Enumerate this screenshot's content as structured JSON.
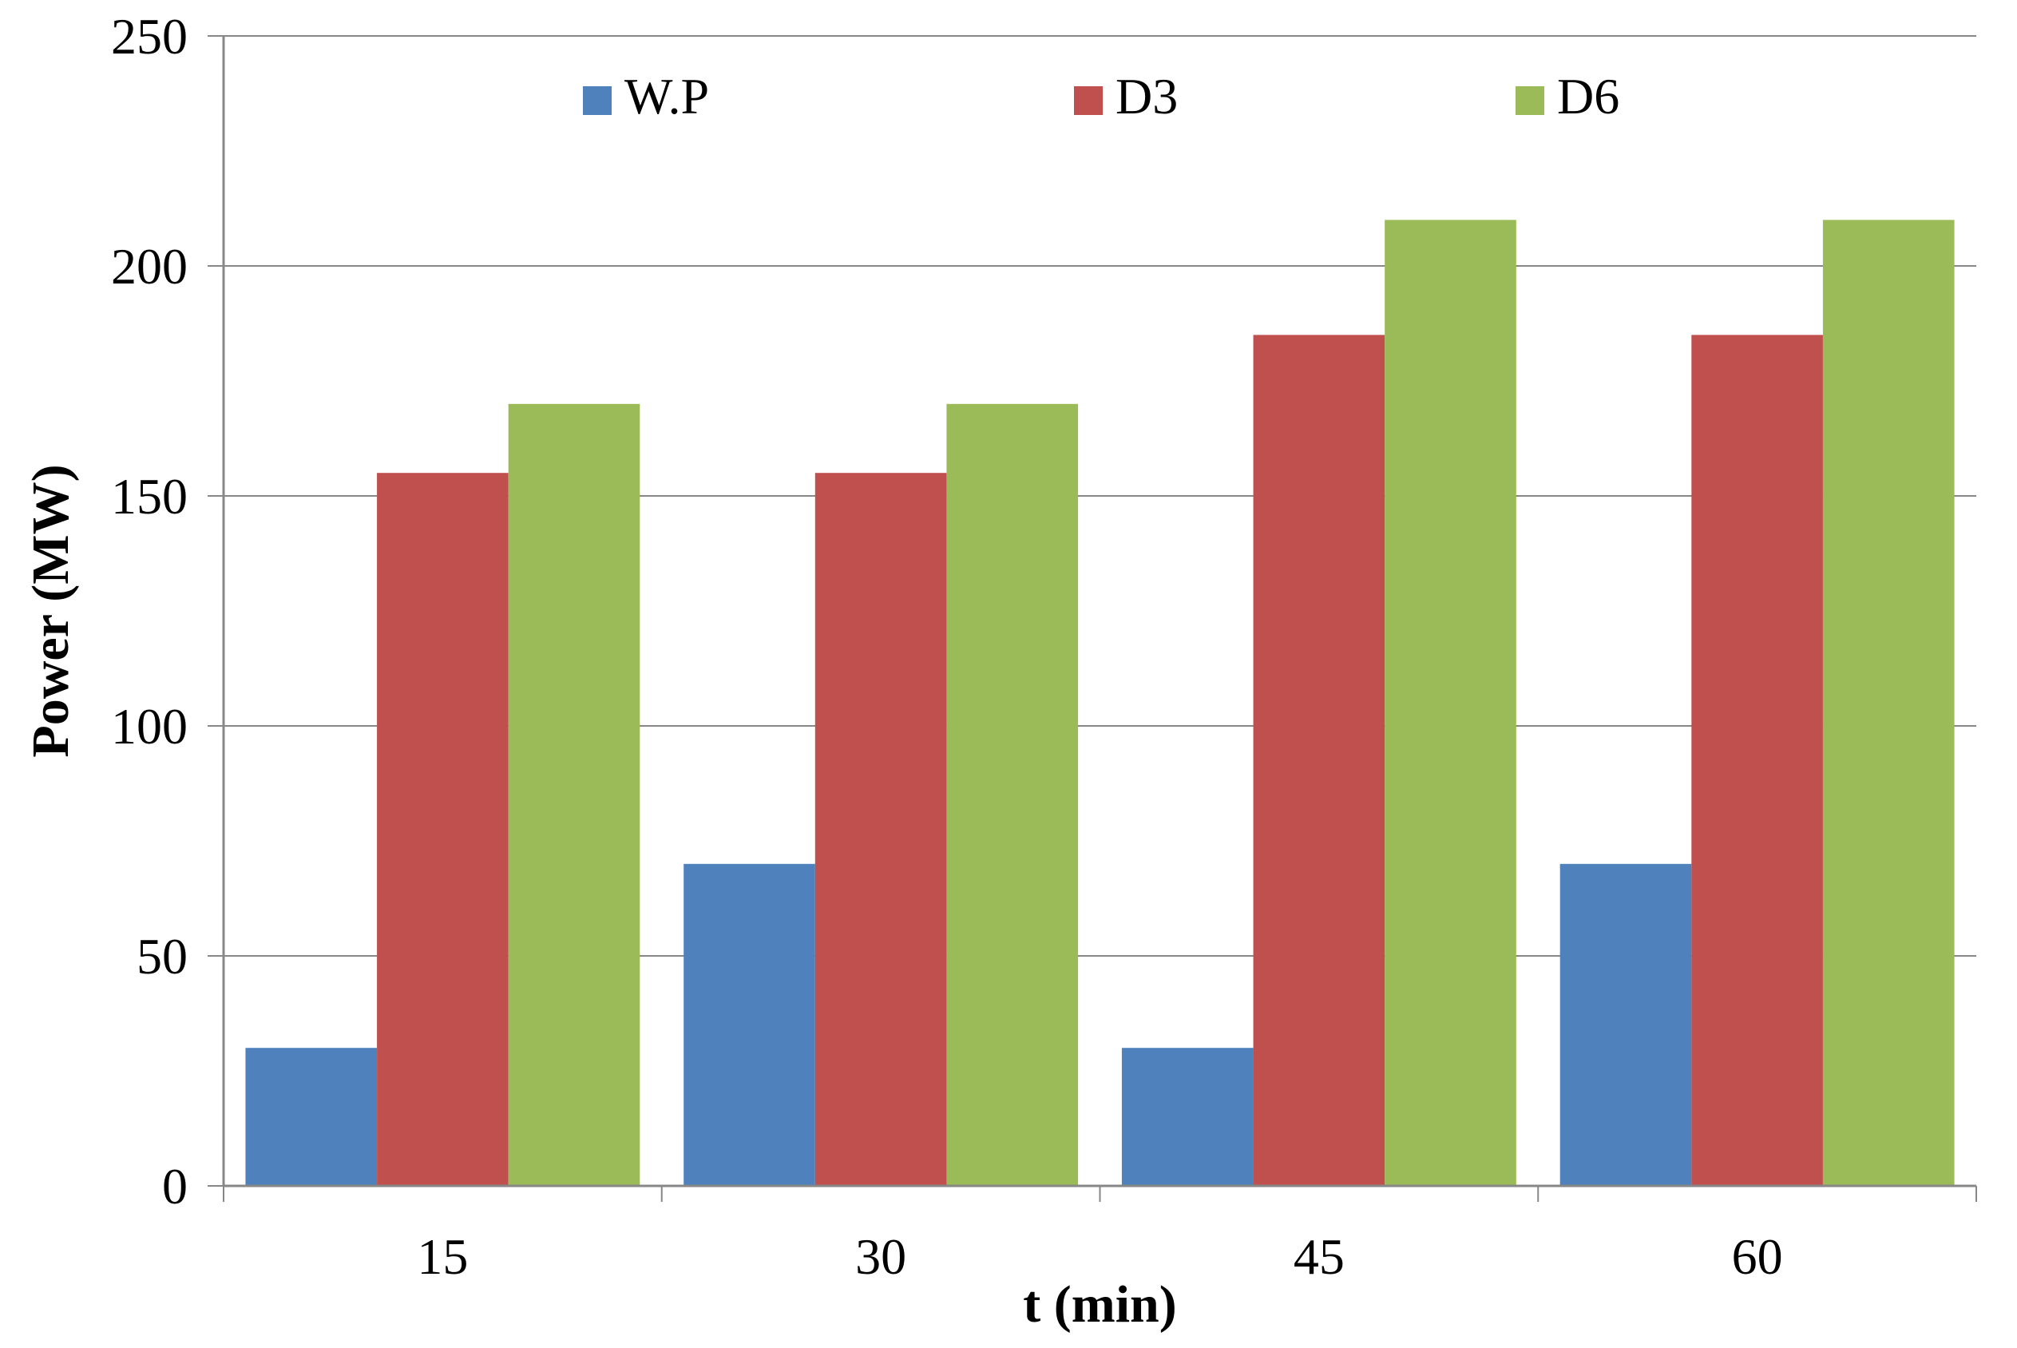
{
  "chart_data": {
    "type": "bar",
    "title": "",
    "xlabel": "t (min)",
    "ylabel": "Power (MW)",
    "categories": [
      "15",
      "30",
      "45",
      "60"
    ],
    "series": [
      {
        "name": "W.P",
        "color": "#4F81BD",
        "values": [
          30,
          70,
          30,
          70
        ]
      },
      {
        "name": "D3",
        "color": "#C0504D",
        "values": [
          155,
          155,
          185,
          185
        ]
      },
      {
        "name": "D6",
        "color": "#9BBB59",
        "values": [
          170,
          170,
          210,
          210
        ]
      }
    ],
    "ylim": [
      0,
      250
    ],
    "yticks": [
      0,
      50,
      100,
      150,
      200,
      250
    ],
    "grid": true,
    "legend_position": "top"
  }
}
